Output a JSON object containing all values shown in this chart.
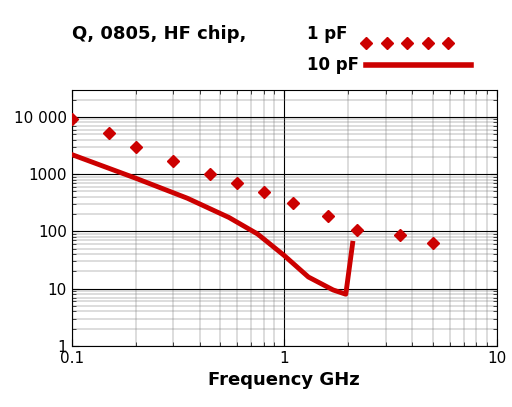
{
  "xlabel": "Frequency GHz",
  "xlim": [
    0.1,
    10
  ],
  "ylim": [
    1,
    30000
  ],
  "color": "#CC0000",
  "title_text": "Q, 0805, HF chip,",
  "legend_1pF": "1 pF",
  "legend_10pF": "10 pF",
  "freq_1pF": [
    0.1,
    0.15,
    0.2,
    0.3,
    0.45,
    0.6,
    0.8,
    1.1,
    1.6,
    2.2,
    3.5,
    5.0
  ],
  "Q_1pF": [
    9200,
    5200,
    3000,
    1700,
    1000,
    700,
    480,
    310,
    185,
    105,
    88,
    62
  ],
  "freq_10pF": [
    0.1,
    0.2,
    0.35,
    0.55,
    0.75,
    1.0,
    1.3,
    1.7,
    1.95,
    2.1
  ],
  "Q_10pF": [
    2200,
    850,
    380,
    175,
    90,
    38,
    16,
    9.5,
    8.0,
    62
  ],
  "background_color": "#ffffff"
}
